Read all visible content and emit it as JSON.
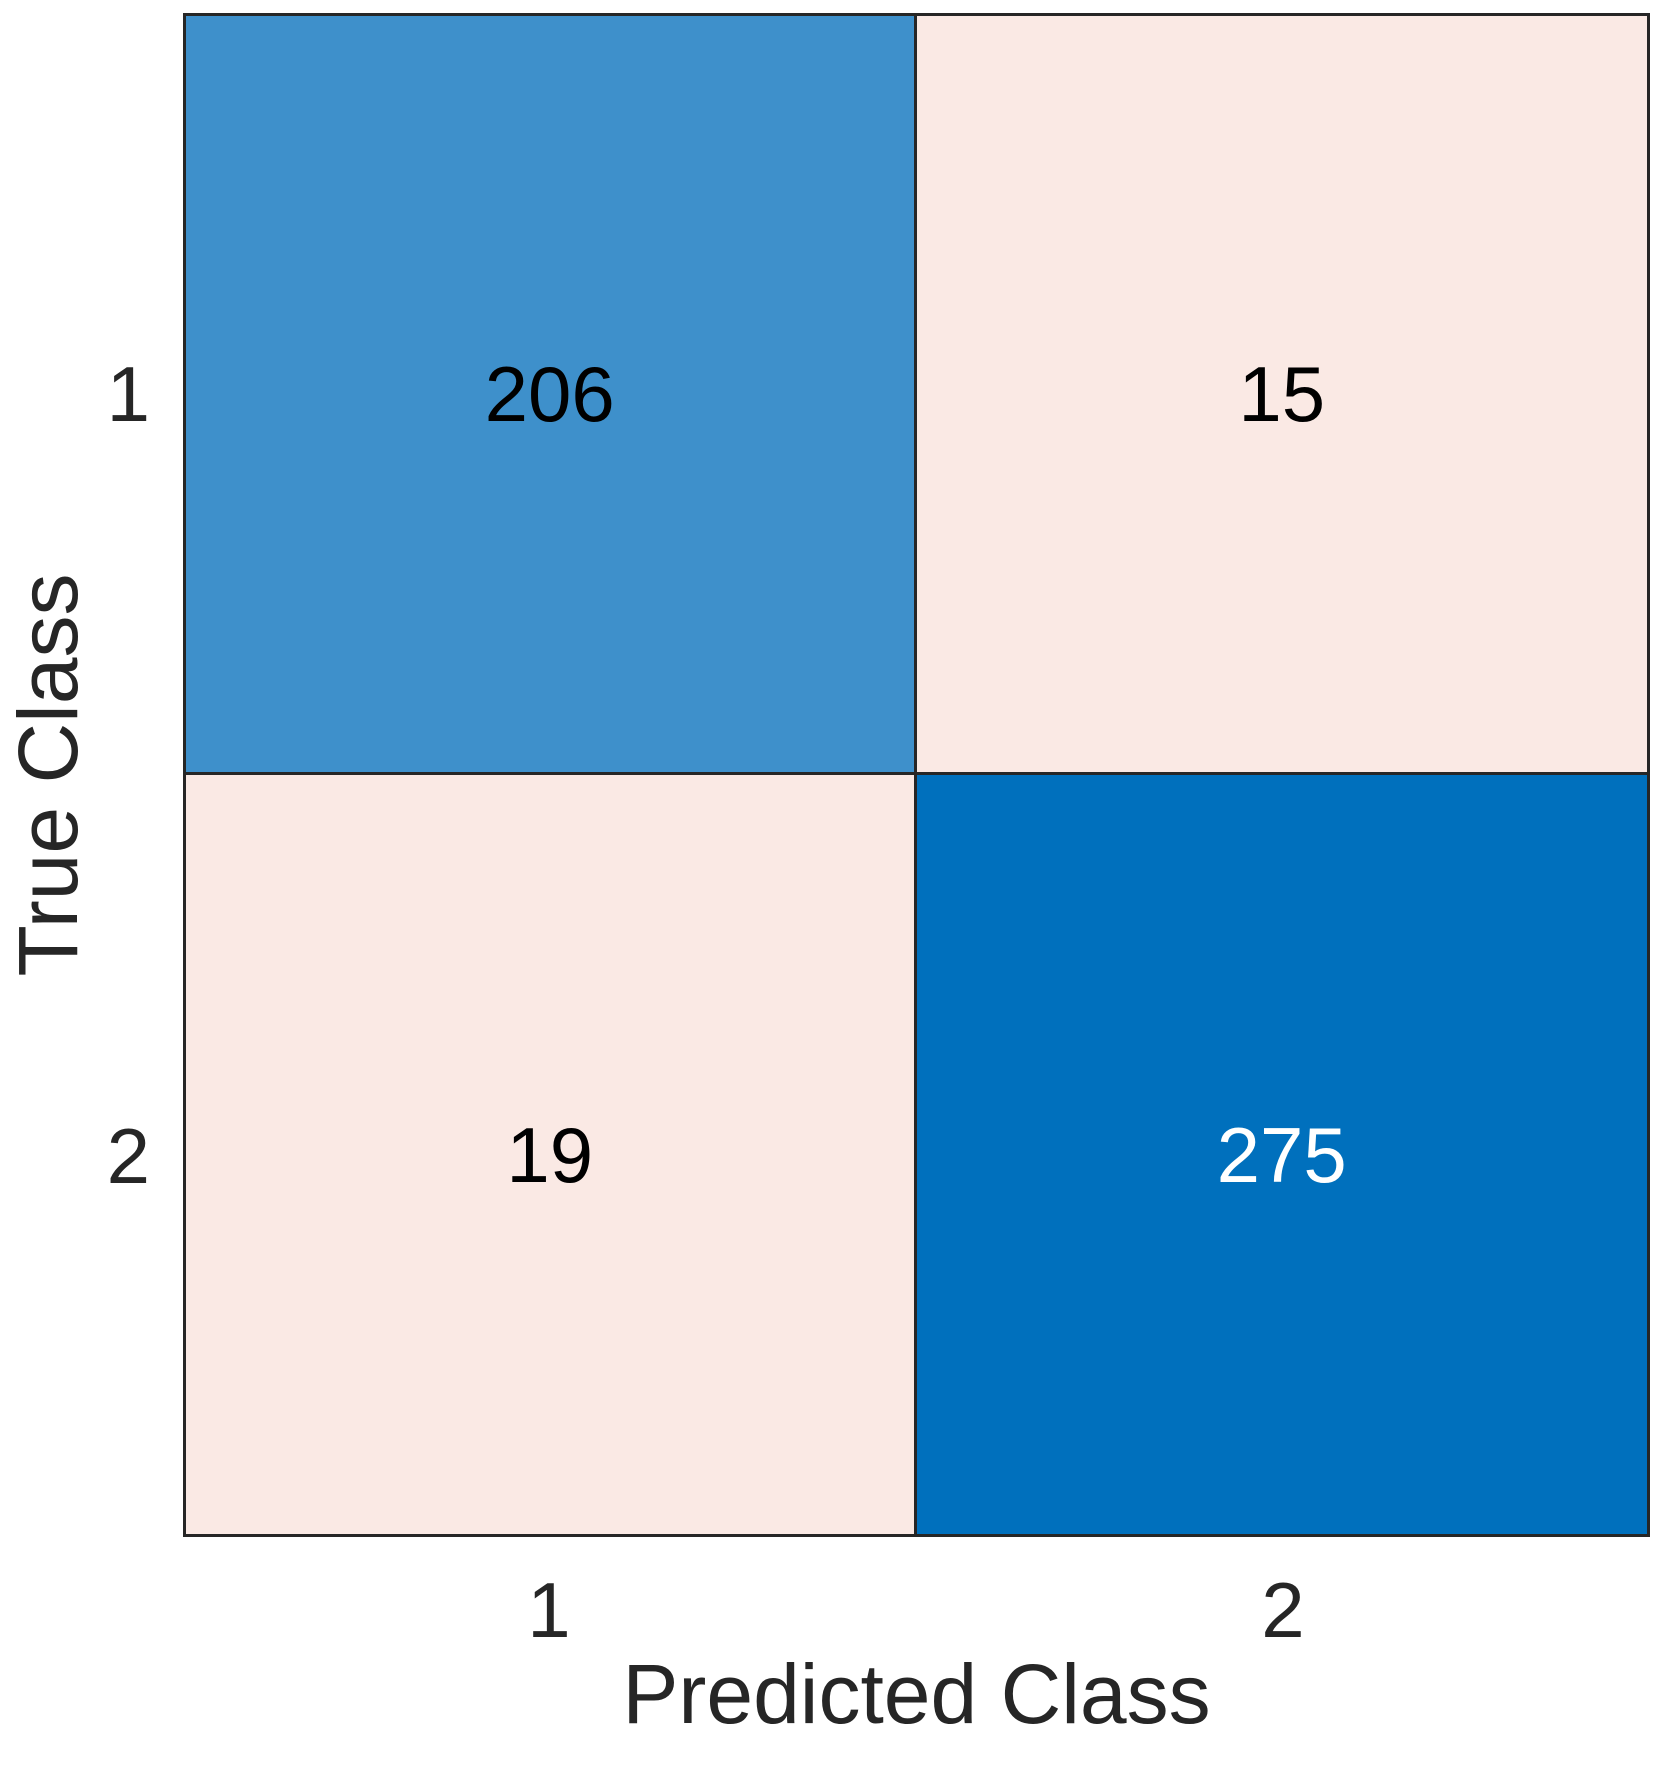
{
  "figure": {
    "background": "#FFFFFF"
  },
  "chart_data": {
    "type": "heatmap",
    "subtype": "confusion_matrix",
    "title": "",
    "xlabel": "Predicted Class",
    "ylabel": "True Class",
    "x_tick_labels": [
      "1",
      "2"
    ],
    "y_tick_labels": [
      "1",
      "2"
    ],
    "matrix": [
      [
        206,
        15
      ],
      [
        19,
        275
      ]
    ],
    "cells": [
      {
        "true_class": "1",
        "predicted_class": "1",
        "value": "206",
        "bg": "#3E90CB",
        "fg": "#000000"
      },
      {
        "true_class": "1",
        "predicted_class": "2",
        "value": "15",
        "bg": "#FAE9E4",
        "fg": "#000000"
      },
      {
        "true_class": "2",
        "predicted_class": "1",
        "value": "19",
        "bg": "#FAE9E4",
        "fg": "#000000"
      },
      {
        "true_class": "2",
        "predicted_class": "2",
        "value": "275",
        "bg": "#0070BD",
        "fg": "#FFFFFF"
      }
    ],
    "colors": {
      "diagonal_low": "#3E90CB",
      "diagonal_high": "#0070BD",
      "off_diagonal": "#FAE9E4",
      "axis_line": "#262626",
      "axis_text": "#262626",
      "cell_text_dark": "#000000",
      "cell_text_light": "#FFFFFF"
    },
    "legend": "none",
    "grid": "off"
  }
}
